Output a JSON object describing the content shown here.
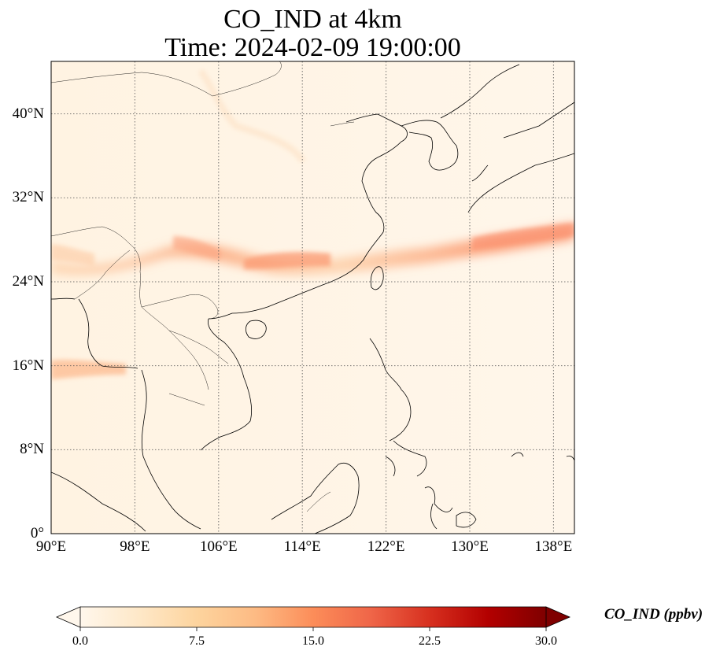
{
  "title": {
    "line1": "CO_IND at 4km",
    "line2": "Time: 2024-02-09 19:00:00"
  },
  "map": {
    "variable": "CO_IND",
    "lon_range": [
      90,
      140
    ],
    "lat_range": [
      0,
      45
    ],
    "lat_ticks": [
      "40°N",
      "32°N",
      "24°N",
      "16°N",
      "8°N",
      "0°"
    ],
    "lon_ticks": [
      "90°E",
      "98°E",
      "106°E",
      "114°E",
      "122°E",
      "130°E",
      "138°E"
    ],
    "gridlines": true,
    "colormap": "OrRd"
  },
  "colorbar": {
    "label": "CO_IND (ppbv)",
    "ticks": [
      "0.0",
      "7.5",
      "15.0",
      "22.5",
      "30.0"
    ],
    "min": 0,
    "max": 30,
    "extend": "both",
    "colors": [
      "#fff7ec",
      "#fee8c8",
      "#fdd49e",
      "#fdbb84",
      "#fc8d59",
      "#ef6548",
      "#d7301f",
      "#b30000",
      "#7f0000"
    ]
  }
}
